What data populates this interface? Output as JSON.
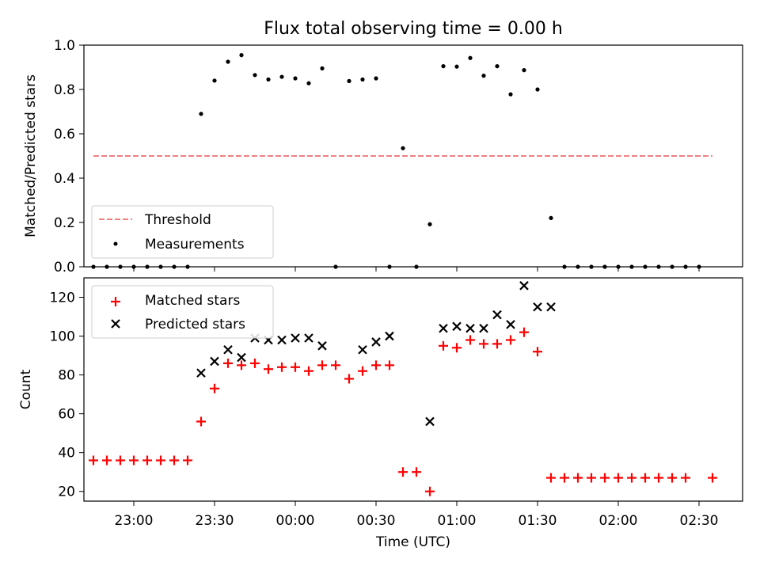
{
  "figure": {
    "title": "Flux total observing time = 0.00 h"
  },
  "chart_data": [
    {
      "type": "scatter",
      "ylabel": "Matched/Predicted stars",
      "xlabel": "",
      "ylim": [
        0,
        1.0
      ],
      "yticks": [
        0.0,
        0.2,
        0.4,
        0.6,
        0.8,
        1.0
      ],
      "ytick_labels": [
        "0.0",
        "0.2",
        "0.4",
        "0.6",
        "0.8",
        "1.0"
      ],
      "legend_position": "lower-left",
      "grid": false,
      "threshold": {
        "name": "Threshold",
        "value": 0.5,
        "x_start": "22:45",
        "x_end": "02:35",
        "color": "#f08080",
        "style": "dashed"
      },
      "series": [
        {
          "name": "Measurements",
          "marker": "dot",
          "color": "#000000",
          "x": [
            "22:45",
            "22:50",
            "22:55",
            "23:00",
            "23:05",
            "23:10",
            "23:15",
            "23:20",
            "23:25",
            "23:30",
            "23:35",
            "23:40",
            "23:45",
            "23:50",
            "23:55",
            "00:00",
            "00:05",
            "00:10",
            "00:15",
            "00:20",
            "00:25",
            "00:30",
            "00:35",
            "00:40",
            "00:45",
            "00:50",
            "00:55",
            "01:00",
            "01:05",
            "01:10",
            "01:15",
            "01:20",
            "01:25",
            "01:30",
            "01:35",
            "01:40",
            "01:45",
            "01:50",
            "01:55",
            "02:00",
            "02:05",
            "02:10",
            "02:15",
            "02:20",
            "02:25",
            "02:30",
            "02:35"
          ],
          "y": [
            0.0,
            0.0,
            0.0,
            0.0,
            0.0,
            0.0,
            0.0,
            0.0,
            0.69,
            0.84,
            0.925,
            0.955,
            0.865,
            0.845,
            0.857,
            0.85,
            0.828,
            0.895,
            0.0,
            0.838,
            0.845,
            0.85,
            0.0,
            0.535,
            0.0,
            0.192,
            0.905,
            0.903,
            0.942,
            0.862,
            0.905,
            0.778,
            0.887,
            0.8,
            0.22,
            0.0,
            0.0,
            0.0,
            0.0,
            0.0,
            0.0,
            0.0,
            0.0,
            0.0,
            0.0,
            0.0,
            null
          ]
        }
      ]
    },
    {
      "type": "scatter",
      "ylabel": "Count",
      "xlabel": "Time (UTC)",
      "ylim": [
        15,
        130
      ],
      "yticks": [
        20,
        40,
        60,
        80,
        100,
        120
      ],
      "ytick_labels": [
        "20",
        "40",
        "60",
        "80",
        "100",
        "120"
      ],
      "xticks": [
        "23:00",
        "23:30",
        "00:00",
        "00:30",
        "01:00",
        "01:30",
        "02:00",
        "02:30"
      ],
      "legend_position": "top-left",
      "grid": false,
      "series": [
        {
          "name": "Matched stars",
          "marker": "plus",
          "color": "#ff0000",
          "x": [
            "22:45",
            "22:50",
            "22:55",
            "23:00",
            "23:05",
            "23:10",
            "23:15",
            "23:20",
            "23:25",
            "23:30",
            "23:35",
            "23:40",
            "23:45",
            "23:50",
            "23:55",
            "00:00",
            "00:05",
            "00:10",
            "00:15",
            "00:20",
            "00:25",
            "00:30",
            "00:35",
            "00:40",
            "00:45",
            "00:50",
            "00:55",
            "01:00",
            "01:05",
            "01:10",
            "01:15",
            "01:20",
            "01:25",
            "01:30",
            "01:35",
            "01:40",
            "01:45",
            "01:50",
            "01:55",
            "02:00",
            "02:05",
            "02:10",
            "02:15",
            "02:20",
            "02:25",
            "02:30",
            "02:35"
          ],
          "y": [
            36,
            36,
            36,
            36,
            36,
            36,
            36,
            36,
            56,
            73,
            86,
            85,
            86,
            83,
            84,
            84,
            82,
            85,
            85,
            78,
            82,
            85,
            85,
            30,
            30,
            20,
            95,
            94,
            98,
            96,
            96,
            98,
            102,
            92,
            27,
            27,
            27,
            27,
            27,
            27,
            27,
            27,
            27,
            27,
            27,
            null,
            27
          ]
        },
        {
          "name": "Predicted stars",
          "marker": "x",
          "color": "#000000",
          "x": [
            "23:25",
            "23:30",
            "23:35",
            "23:40",
            "23:45",
            "23:50",
            "23:55",
            "00:00",
            "00:05",
            "00:10",
            "00:25",
            "00:30",
            "00:35",
            "00:50",
            "00:55",
            "01:00",
            "01:05",
            "01:10",
            "01:15",
            "01:20",
            "01:25",
            "01:30",
            "01:35"
          ],
          "y": [
            81,
            87,
            93,
            89,
            99,
            98,
            98,
            99,
            99,
            95,
            93,
            97,
            100,
            56,
            104,
            105,
            104,
            104,
            111,
            106,
            126,
            115,
            115
          ]
        }
      ]
    }
  ]
}
